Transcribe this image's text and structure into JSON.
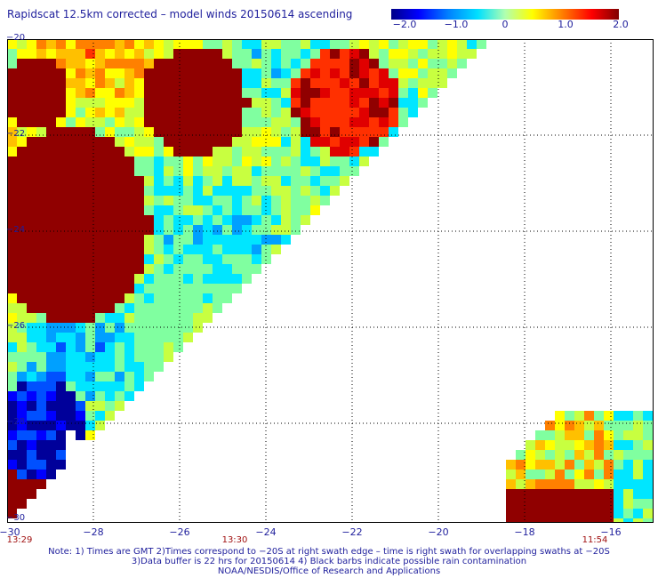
{
  "title": "Rapidscat 12.5km corrected – model winds 20150614 ascending",
  "colorbar": {
    "ticks": [
      "−2.0",
      "−1.0",
      "0",
      "1.0",
      "2.0"
    ],
    "range": [
      -2.0,
      2.0
    ],
    "colors": [
      "#000087",
      "#0000ff",
      "#0080ff",
      "#00e0ff",
      "#b0ffb0",
      "#ffff00",
      "#ff8000",
      "#ff0000",
      "#800000"
    ]
  },
  "axes": {
    "x_ticks": [
      "−30",
      "−28",
      "−26",
      "−24",
      "−22",
      "−20",
      "−18",
      "−16"
    ],
    "y_ticks": [
      "−20",
      "−22",
      "−24",
      "−26",
      "−28",
      "−30"
    ],
    "x_range": [
      -30,
      -15
    ],
    "y_range": [
      -20,
      -30
    ]
  },
  "times": [
    {
      "label": "13:29",
      "lon": -30
    },
    {
      "label": "13:30",
      "lon": -25.3
    },
    {
      "label": "11:54",
      "lon": -16.4
    }
  ],
  "notes": [
    "Note: 1) Times are GMT 2)Times correspond to −20S at right swath edge – time is right swath for overlapping swaths at −20S",
    "3)Data buffer is 22 hrs for 20150614 4) Black barbs indicate possible rain contamination",
    "NOAA/NESDIS/Office of Research and Applications"
  ]
}
